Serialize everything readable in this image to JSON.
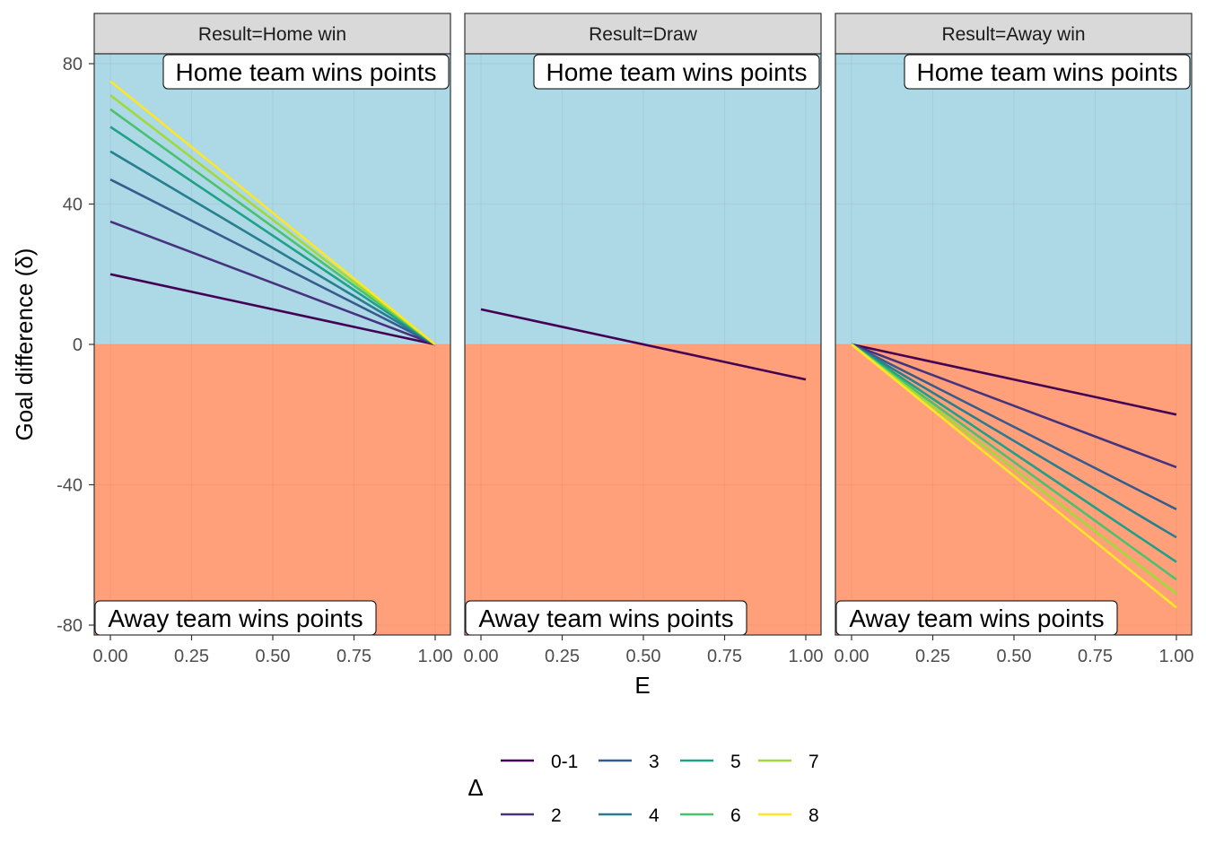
{
  "chart_data": {
    "type": "line",
    "xlabel": "E",
    "ylabel": "Goal difference (δ)",
    "xlim": [
      0,
      1
    ],
    "ylim": [
      -83,
      83
    ],
    "x_ticks": [
      "0.00",
      "0.25",
      "0.50",
      "0.75",
      "1.00"
    ],
    "x_tick_values": [
      0,
      0.25,
      0.5,
      0.75,
      1
    ],
    "y_ticks": [
      "-80",
      "-40",
      "0",
      "40",
      "80"
    ],
    "y_tick_values": [
      -80,
      -40,
      0,
      40,
      80
    ],
    "grid": true,
    "region_colors": {
      "above_zero": "#ADD8E6",
      "below_zero": "#FFA07A"
    },
    "region_labels": {
      "above_zero": "Home team wins points",
      "below_zero": "Away team wins points"
    },
    "legend": {
      "title": "Δ",
      "placement": "bottom",
      "entries": [
        "0-1",
        "2",
        "3",
        "4",
        "5",
        "6",
        "7",
        "8"
      ],
      "colors": [
        "#440154",
        "#46337E",
        "#365C8D",
        "#277F8E",
        "#1FA187",
        "#4AC16D",
        "#9FDA3A",
        "#FDE725"
      ]
    },
    "panels": [
      {
        "strip": "Result=Home win",
        "series": [
          {
            "name": "0-1",
            "x": [
              0,
              1
            ],
            "y": [
              20,
              0
            ]
          },
          {
            "name": "2",
            "x": [
              0,
              1
            ],
            "y": [
              35,
              0
            ]
          },
          {
            "name": "3",
            "x": [
              0,
              1
            ],
            "y": [
              47,
              0
            ]
          },
          {
            "name": "4",
            "x": [
              0,
              1
            ],
            "y": [
              55,
              0
            ]
          },
          {
            "name": "5",
            "x": [
              0,
              1
            ],
            "y": [
              62,
              0
            ]
          },
          {
            "name": "6",
            "x": [
              0,
              1
            ],
            "y": [
              67,
              0
            ]
          },
          {
            "name": "7",
            "x": [
              0,
              1
            ],
            "y": [
              71,
              0
            ]
          },
          {
            "name": "8",
            "x": [
              0,
              1
            ],
            "y": [
              75,
              0
            ]
          }
        ]
      },
      {
        "strip": "Result=Draw",
        "series": [
          {
            "name": "0-1",
            "x": [
              0,
              1
            ],
            "y": [
              10,
              -10
            ]
          }
        ]
      },
      {
        "strip": "Result=Away win",
        "series": [
          {
            "name": "0-1",
            "x": [
              0,
              1
            ],
            "y": [
              0,
              -20
            ]
          },
          {
            "name": "2",
            "x": [
              0,
              1
            ],
            "y": [
              0,
              -35
            ]
          },
          {
            "name": "3",
            "x": [
              0,
              1
            ],
            "y": [
              0,
              -47
            ]
          },
          {
            "name": "4",
            "x": [
              0,
              1
            ],
            "y": [
              0,
              -55
            ]
          },
          {
            "name": "5",
            "x": [
              0,
              1
            ],
            "y": [
              0,
              -62
            ]
          },
          {
            "name": "6",
            "x": [
              0,
              1
            ],
            "y": [
              0,
              -67
            ]
          },
          {
            "name": "7",
            "x": [
              0,
              1
            ],
            "y": [
              0,
              -71
            ]
          },
          {
            "name": "8",
            "x": [
              0,
              1
            ],
            "y": [
              0,
              -75
            ]
          }
        ]
      }
    ]
  }
}
